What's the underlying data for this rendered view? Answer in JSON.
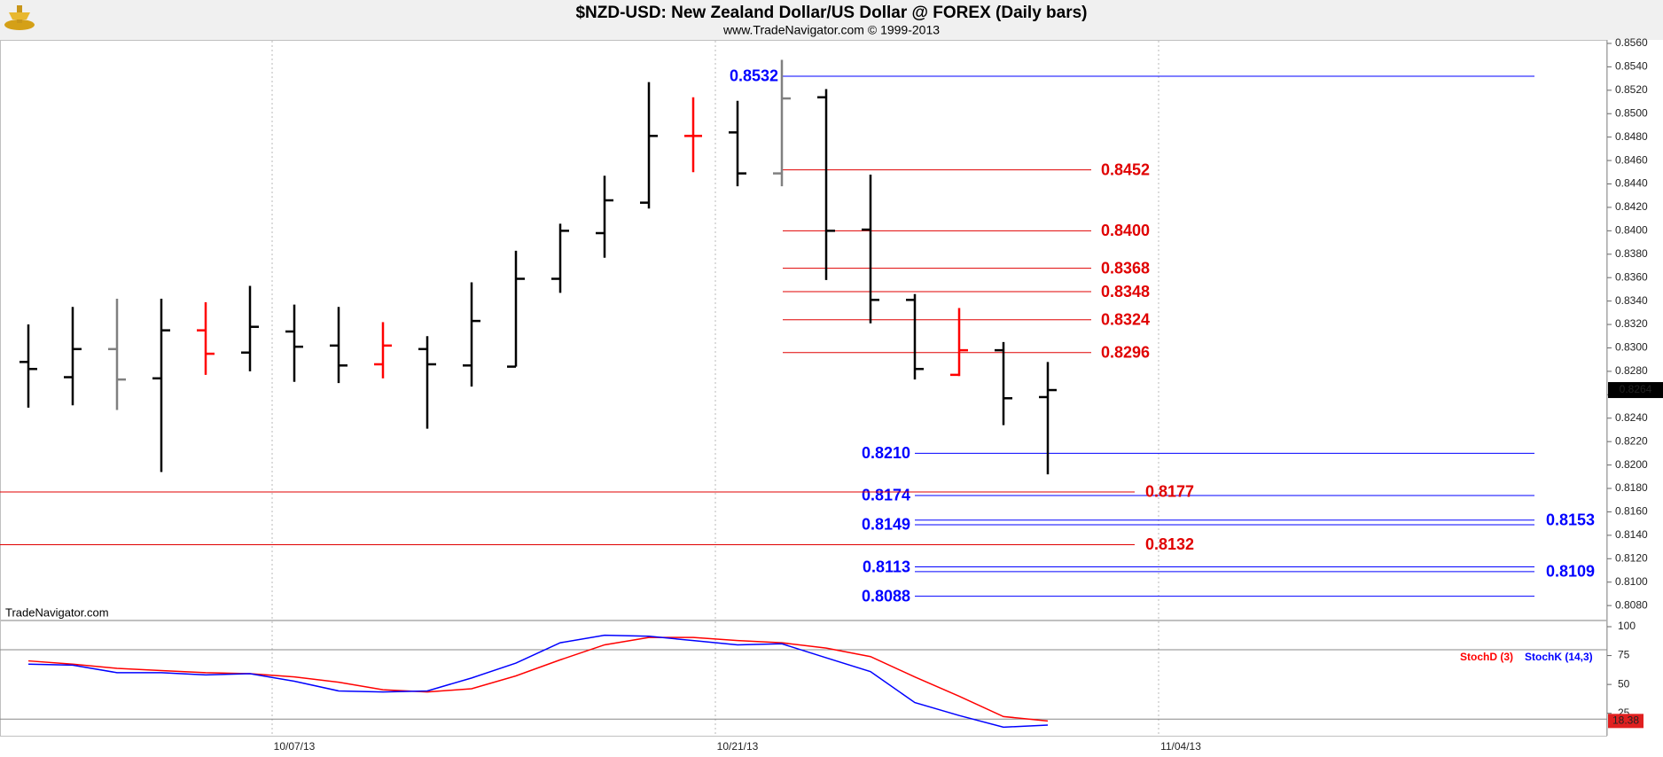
{
  "chart_data": [
    {
      "type": "ohlc",
      "title": "$NZD-USD:  New Zealand Dollar/US Dollar @ FOREX  (Daily bars)",
      "subtitle": "www.TradeNavigator.com © 1999-2013",
      "watermark": "TradeNavigator.com",
      "categories": [
        null,
        null,
        null,
        null,
        null,
        null,
        "10/07/13",
        null,
        null,
        null,
        null,
        null,
        null,
        null,
        null,
        null,
        "10/21/13",
        null,
        null,
        null,
        null,
        null,
        null,
        null,
        null,
        null,
        "11/04/13",
        null,
        null,
        null,
        null,
        null,
        null,
        null,
        null,
        null
      ],
      "open": [
        0.8288,
        0.8275,
        0.8299,
        0.8274,
        0.8315,
        0.8296,
        0.8314,
        0.8302,
        0.8286,
        0.8299,
        0.8285,
        0.8284,
        0.8359,
        0.8398,
        0.8424,
        0.8481,
        0.8484,
        0.8449,
        0.8514,
        0.8401,
        0.8341,
        0.8277,
        0.8298,
        0.8258,
        null,
        null,
        null,
        null,
        null,
        null,
        null,
        null,
        null,
        null,
        null,
        null
      ],
      "high": [
        0.832,
        0.8335,
        0.8342,
        0.8342,
        0.8339,
        0.8353,
        0.8337,
        0.8335,
        0.8322,
        0.831,
        0.8356,
        0.8383,
        0.8406,
        0.8447,
        0.8527,
        0.8514,
        0.8511,
        0.8546,
        0.8521,
        0.8448,
        0.8346,
        0.8334,
        0.8305,
        0.8288,
        null,
        null,
        null,
        null,
        null,
        null,
        null,
        null,
        null,
        null,
        null,
        null
      ],
      "low": [
        0.8249,
        0.8251,
        0.8247,
        0.8194,
        0.8277,
        0.828,
        0.8271,
        0.827,
        0.8274,
        0.8231,
        0.8267,
        0.8284,
        0.8347,
        0.8377,
        0.8419,
        0.845,
        0.8438,
        0.8438,
        0.8358,
        0.8321,
        0.8273,
        0.8276,
        0.8234,
        0.8192,
        null,
        null,
        null,
        null,
        null,
        null,
        null,
        null,
        null,
        null,
        null,
        null
      ],
      "close": [
        0.8282,
        0.8299,
        0.8273,
        0.8315,
        0.8295,
        0.8318,
        0.8301,
        0.8285,
        0.8302,
        0.8286,
        0.8323,
        0.8359,
        0.84,
        0.8426,
        0.8481,
        0.8481,
        0.8449,
        0.8513,
        0.84,
        0.8341,
        0.8282,
        0.8298,
        0.8257,
        0.8264,
        null,
        null,
        null,
        null,
        null,
        null,
        null,
        null,
        null,
        null,
        null,
        null
      ],
      "bar_colors": [
        "#000000",
        "#000000",
        "#808080",
        "#000000",
        "#ff0000",
        "#000000",
        "#000000",
        "#000000",
        "#ff0000",
        "#000000",
        "#000000",
        "#000000",
        "#000000",
        "#000000",
        "#000000",
        "#ff0000",
        "#000000",
        "#808080",
        "#000000",
        "#000000",
        "#000000",
        "#ff0000",
        "#000000",
        "#000000",
        null,
        null,
        null,
        null,
        null,
        null,
        null,
        null,
        null,
        null,
        null,
        null
      ],
      "ylim": [
        0.8068,
        0.8563
      ],
      "yticks": [
        {
          "value": 0.808,
          "label": "0.8080"
        },
        {
          "value": 0.81,
          "label": "0.8100"
        },
        {
          "value": 0.812,
          "label": "0.8120"
        },
        {
          "value": 0.814,
          "label": "0.8140"
        },
        {
          "value": 0.816,
          "label": "0.8160"
        },
        {
          "value": 0.818,
          "label": "0.8180"
        },
        {
          "value": 0.82,
          "label": "0.8200"
        },
        {
          "value": 0.822,
          "label": "0.8220"
        },
        {
          "value": 0.824,
          "label": "0.8240"
        },
        {
          "value": 0.826,
          "label": "0.8260"
        },
        {
          "value": 0.828,
          "label": "0.8280"
        },
        {
          "value": 0.83,
          "label": "0.8300"
        },
        {
          "value": 0.832,
          "label": "0.8320"
        },
        {
          "value": 0.834,
          "label": "0.8340"
        },
        {
          "value": 0.836,
          "label": "0.8360"
        },
        {
          "value": 0.838,
          "label": "0.8380"
        },
        {
          "value": 0.84,
          "label": "0.8400"
        },
        {
          "value": 0.842,
          "label": "0.8420"
        },
        {
          "value": 0.844,
          "label": "0.8440"
        },
        {
          "value": 0.846,
          "label": "0.8460"
        },
        {
          "value": 0.848,
          "label": "0.8480"
        },
        {
          "value": 0.85,
          "label": "0.8500"
        },
        {
          "value": 0.852,
          "label": "0.8520"
        },
        {
          "value": 0.854,
          "label": "0.8540"
        },
        {
          "value": 0.856,
          "label": "0.8560"
        }
      ],
      "levels": [
        {
          "value": 0.8532,
          "label": "0.8532",
          "color": "#0000ff"
        },
        {
          "value": 0.821,
          "label": "0.8210",
          "color": "#0000ff"
        },
        {
          "value": 0.8174,
          "label": "0.8174",
          "color": "#0000ff"
        },
        {
          "value": 0.8153,
          "label": "0.8153",
          "color": "#0000ff"
        },
        {
          "value": 0.8149,
          "label": "0.8149",
          "color": "#0000ff"
        },
        {
          "value": 0.8113,
          "label": "0.8113",
          "color": "#0000ff"
        },
        {
          "value": 0.8109,
          "label": "0.8109",
          "color": "#0000ff"
        },
        {
          "value": 0.8088,
          "label": "0.8088",
          "color": "#0000ff"
        },
        {
          "value": 0.8452,
          "label": "0.8452",
          "color": "#e00000"
        },
        {
          "value": 0.84,
          "label": "0.8400",
          "color": "#e00000"
        },
        {
          "value": 0.8368,
          "label": "0.8368",
          "color": "#e00000"
        },
        {
          "value": 0.8348,
          "label": "0.8348",
          "color": "#e00000"
        },
        {
          "value": 0.8324,
          "label": "0.8324",
          "color": "#e00000"
        },
        {
          "value": 0.8296,
          "label": "0.8296",
          "color": "#e00000"
        },
        {
          "value": 0.8177,
          "label": "0.8177",
          "color": "#e00000"
        },
        {
          "value": 0.8132,
          "label": "0.8132",
          "color": "#e00000"
        }
      ],
      "grid": true
    },
    {
      "type": "line",
      "series": [
        {
          "name": "StochD (3)",
          "color": "#ff0000",
          "values": [
            70.4,
            67.6,
            63.9,
            62.0,
            60.2,
            59.3,
            56.5,
            51.9,
            45.4,
            43.5,
            46.3,
            57.4,
            71.3,
            84.3,
            90.7,
            90.7,
            88.0,
            86.1,
            81.5,
            74.1,
            56.5,
            39.8,
            22.2,
            18.38,
            null,
            null,
            null,
            null,
            null,
            null,
            null,
            null,
            null,
            null,
            null,
            null
          ]
        },
        {
          "name": "StochK (14,3)",
          "color": "#0000ff",
          "values": [
            67.6,
            66.7,
            60.2,
            60.2,
            58.3,
            59.3,
            52.8,
            44.4,
            43.5,
            44.4,
            55.6,
            68.5,
            86.1,
            92.6,
            91.7,
            88.0,
            84.3,
            85.2,
            73.1,
            61.1,
            34.3,
            23.1,
            13.0,
            14.8,
            null,
            null,
            null,
            null,
            null,
            null,
            null,
            null,
            null,
            null,
            null,
            null
          ]
        }
      ],
      "ylim": [
        5.6,
        104.6
      ],
      "yticks": [
        25,
        50,
        75,
        100
      ],
      "ref_lines": [
        20,
        80
      ]
    }
  ]
}
